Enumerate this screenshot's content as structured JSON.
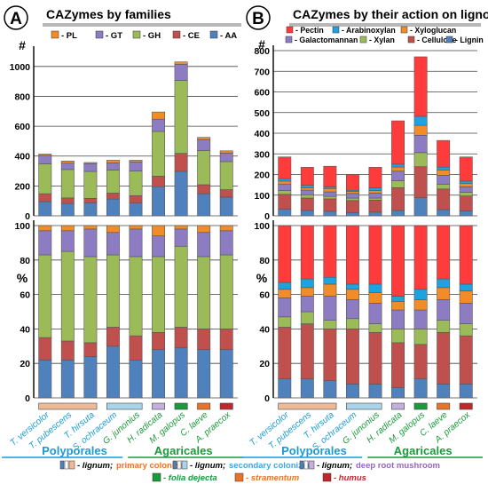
{
  "figure": {
    "bottom_legend": [
      {
        "swatch": "lignum-primary-colonizer",
        "lignum": "- lignum;",
        "role": "primary colonizer",
        "role_color": "#e8742a"
      },
      {
        "swatch": "lignum-secondary-colonizer",
        "lignum": "- lignum;",
        "role": "secondary colonizer",
        "role_color": "#42a6d9"
      },
      {
        "swatch": "lignum-deep-root",
        "lignum": "- lignum;",
        "role": "deep root mushroom",
        "role_color": "#9467bd"
      },
      {
        "swatch": "folia-dejecta",
        "text": "- folia dejecta",
        "color": "#1a9a3a"
      },
      {
        "swatch": "stramentum",
        "text": "- stramentum",
        "color": "#e8742a"
      },
      {
        "swatch": "humus",
        "text": "- humus",
        "color": "#c0272d"
      }
    ],
    "order_labels": {
      "left": "Polyporales",
      "right": "Agaricales",
      "left_color": "#1a9ad6",
      "right_color": "#1a9a3a"
    },
    "species": [
      {
        "name": "T. versicolor",
        "color": "#1a9ad6",
        "substrate": "lignum-primary"
      },
      {
        "name": "T. pubescens",
        "color": "#1a9ad6",
        "substrate": "lignum-primary"
      },
      {
        "name": "T. hirsuta",
        "color": "#1a9ad6",
        "substrate": "lignum-primary"
      },
      {
        "name": "S. ochraceum",
        "color": "#1a9ad6",
        "substrate": "lignum-secondary"
      },
      {
        "name": "G. junonius",
        "color": "#1a9a3a",
        "substrate": "lignum-secondary"
      },
      {
        "name": "H. radicata",
        "color": "#1a9a3a",
        "substrate": "lignum-deep"
      },
      {
        "name": "M. galopus",
        "color": "#1a9a3a",
        "substrate": "folia-dejecta"
      },
      {
        "name": "C. laeve",
        "color": "#1a9a3a",
        "substrate": "stramentum"
      },
      {
        "name": "A. praecox",
        "color": "#1a9a3a",
        "substrate": "humus"
      }
    ],
    "substrate_colors": {
      "lignum-primary": "#f0b996",
      "lignum-secondary": "#a8d5ec",
      "lignum-deep": "#c3b0dd",
      "folia-dejecta": "#1a9a3a",
      "stramentum": "#e8742a",
      "humus": "#c0272d"
    }
  },
  "chart_data": [
    {
      "type": "bar",
      "panel": "A",
      "title": "CAZymes by families",
      "ylabel_top": "#",
      "ylabel_bottom": "%",
      "categories": [
        "T. versicolor",
        "T. pubescens",
        "T. hirsuta",
        "S. ochraceum",
        "G. junonius",
        "H. radicata",
        "M. galopus",
        "C. laeve",
        "A. praecox"
      ],
      "ylim_top": [
        0,
        1100
      ],
      "yticks_top": [
        0,
        200,
        400,
        600,
        800,
        1000
      ],
      "ylim_bottom": [
        0,
        100
      ],
      "yticks_bottom": [
        0,
        20,
        40,
        60,
        80,
        100
      ],
      "stacked": true,
      "legend": [
        {
          "name": "PL",
          "label": "- PL",
          "color": "#f28c28"
        },
        {
          "name": "GT",
          "label": "- GT",
          "color": "#8e7cc3"
        },
        {
          "name": "GH",
          "label": "- GH",
          "color": "#9bbb59"
        },
        {
          "name": "CE",
          "label": "- CE",
          "color": "#c0504d"
        },
        {
          "name": "AA",
          "label": "- AA",
          "color": "#4f81bd"
        }
      ],
      "series": [
        {
          "name": "AA",
          "color": "#4f81bd",
          "values": [
            95,
            82,
            87,
            112,
            85,
            195,
            298,
            148,
            125
          ]
        },
        {
          "name": "CE",
          "color": "#c0504d",
          "values": [
            53,
            38,
            30,
            40,
            50,
            70,
            120,
            60,
            50
          ]
        },
        {
          "name": "GH",
          "color": "#9bbb59",
          "values": [
            200,
            190,
            180,
            155,
            165,
            300,
            488,
            228,
            188
          ]
        },
        {
          "name": "GT",
          "color": "#8e7cc3",
          "values": [
            57,
            42,
            52,
            47,
            60,
            82,
            108,
            75,
            57
          ]
        },
        {
          "name": "PL",
          "color": "#f28c28",
          "values": [
            8,
            15,
            8,
            18,
            12,
            48,
            16,
            14,
            15
          ]
        }
      ],
      "percent_series": [
        {
          "name": "AA",
          "values": [
            22,
            22,
            24,
            30,
            22,
            28,
            29,
            28,
            28
          ]
        },
        {
          "name": "CE",
          "values": [
            13,
            11,
            8,
            11,
            14,
            10,
            12,
            12,
            12
          ]
        },
        {
          "name": "GH",
          "values": [
            48,
            52,
            50,
            42,
            46,
            44,
            47,
            42,
            43
          ]
        },
        {
          "name": "GT",
          "values": [
            14,
            12,
            16,
            13,
            16,
            12,
            10,
            14,
            14
          ]
        },
        {
          "name": "PL",
          "values": [
            3,
            3,
            2,
            4,
            2,
            6,
            2,
            4,
            3
          ]
        }
      ]
    },
    {
      "type": "bar",
      "panel": "B",
      "title": "CAZymes by their action on  lignocellulose",
      "ylabel_top": "#",
      "ylabel_bottom": "%",
      "categories": [
        "T. versicolor",
        "T. pubescens",
        "T. hirsuta",
        "S. ochraceum",
        "G. junonius",
        "H. radicata",
        "M. galopus",
        "C. laeve",
        "A. praecox"
      ],
      "ylim_top": [
        0,
        800
      ],
      "yticks_top": [
        0,
        100,
        200,
        300,
        400,
        500,
        600,
        700,
        800
      ],
      "ylim_bottom": [
        0,
        100
      ],
      "yticks_bottom": [
        0,
        20,
        40,
        60,
        80,
        100
      ],
      "stacked": true,
      "legend": [
        {
          "name": "Pectin",
          "label": "- Pectin",
          "color": "#ff3b3b"
        },
        {
          "name": "Arabinoxylan",
          "label": "- Arabinoxylan",
          "color": "#1fa2e0"
        },
        {
          "name": "Xyloglucan",
          "label": "- Xyloglucan",
          "color": "#f28c28"
        },
        {
          "name": "Galactomannan",
          "label": "- Galactomannan",
          "color": "#8e7cc3"
        },
        {
          "name": "Xylan",
          "label": "- Xylan",
          "color": "#9bbb59"
        },
        {
          "name": "Cellulose",
          "label": "- Cellulose",
          "color": "#c0504d"
        },
        {
          "name": "Lignin",
          "label": "- Lignin",
          "color": "#4f81bd"
        }
      ],
      "series": [
        {
          "name": "Lignin",
          "color": "#4f81bd",
          "values": [
            32,
            26,
            22,
            16,
            18,
            26,
            88,
            30,
            24
          ]
        },
        {
          "name": "Cellulose",
          "color": "#c0504d",
          "values": [
            72,
            60,
            60,
            58,
            58,
            110,
            150,
            100,
            72
          ]
        },
        {
          "name": "Xylan",
          "color": "#9bbb59",
          "values": [
            18,
            16,
            12,
            12,
            10,
            34,
            68,
            22,
            18
          ]
        },
        {
          "name": "Galactomannan",
          "color": "#8e7cc3",
          "values": [
            32,
            22,
            22,
            22,
            24,
            46,
            84,
            44,
            26
          ]
        },
        {
          "name": "Xyloglucan",
          "color": "#f28c28",
          "values": [
            14,
            12,
            16,
            10,
            12,
            20,
            48,
            26,
            16
          ]
        },
        {
          "name": "Arabinoxylan",
          "color": "#1fa2e0",
          "values": [
            12,
            12,
            8,
            6,
            14,
            14,
            44,
            14,
            12
          ]
        },
        {
          "name": "Pectin",
          "color": "#ff3b3b",
          "values": [
            105,
            87,
            100,
            76,
            99,
            210,
            288,
            129,
            117
          ]
        }
      ],
      "percent_series": [
        {
          "name": "Lignin",
          "values": [
            11,
            11,
            10,
            8,
            8,
            6,
            11,
            8,
            8
          ]
        },
        {
          "name": "Cellulose",
          "values": [
            30,
            32,
            30,
            32,
            30,
            26,
            20,
            30,
            28
          ]
        },
        {
          "name": "Xylan",
          "values": [
            6,
            7,
            5,
            6,
            5,
            8,
            9,
            7,
            7
          ]
        },
        {
          "name": "Galactomannan",
          "values": [
            11,
            9,
            14,
            11,
            12,
            11,
            11,
            12,
            12
          ]
        },
        {
          "name": "Xyloglucan",
          "values": [
            5,
            5,
            7,
            6,
            6,
            5,
            6,
            7,
            7
          ]
        },
        {
          "name": "Arabinoxylan",
          "values": [
            4,
            5,
            4,
            3,
            5,
            3,
            6,
            5,
            4
          ]
        },
        {
          "name": "Pectin",
          "values": [
            33,
            31,
            30,
            34,
            34,
            41,
            37,
            31,
            34
          ]
        }
      ]
    }
  ]
}
